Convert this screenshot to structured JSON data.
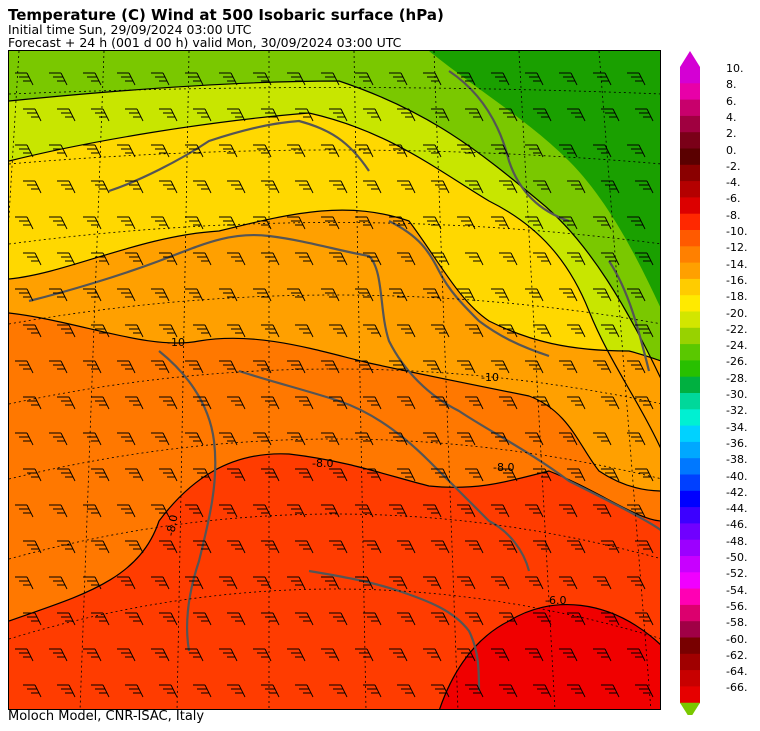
{
  "header": {
    "title": "Temperature (C) Wind  at 500 Isobaric surface (hPa)",
    "initial_time": "Initial time  Sun, 29/09/2024  03:00 UTC",
    "forecast": "Forecast  +  24 h  (001 d 00 h)  valid Mon, 30/09/2024 03:00 UTC"
  },
  "footer": {
    "credit": "Moloch Model, CNR-ISAC, Italy"
  },
  "map": {
    "contour_labels": [
      "-10",
      "-10",
      "-8.0",
      "-8.0",
      "-8.0",
      "-6.0"
    ]
  },
  "legend": {
    "levels": [
      "10.",
      "8.",
      "6.",
      "4.",
      "2.",
      "0.",
      "-2.",
      "-4.",
      "-6.",
      "-8.",
      "-10.",
      "-12.",
      "-14.",
      "-16.",
      "-18.",
      "-20.",
      "-22.",
      "-24.",
      "-26.",
      "-28.",
      "-30.",
      "-32.",
      "-34.",
      "-36.",
      "-38.",
      "-40.",
      "-42.",
      "-44.",
      "-46.",
      "-48.",
      "-50.",
      "-52.",
      "-54.",
      "-56.",
      "-58.",
      "-60.",
      "-62.",
      "-64.",
      "-66."
    ],
    "colors": [
      "#d400d4",
      "#e800a8",
      "#c8006c",
      "#a00040",
      "#7a0018",
      "#5a0000",
      "#8a0000",
      "#b40000",
      "#dc0000",
      "#ff2800",
      "#ff5a00",
      "#ff8000",
      "#ffa000",
      "#ffcc00",
      "#ffea00",
      "#d2e600",
      "#98d200",
      "#5ac800",
      "#28c000",
      "#00b040",
      "#00d89a",
      "#00f0d2",
      "#00d2ff",
      "#00a8ff",
      "#0078ff",
      "#0040ff",
      "#0000ff",
      "#3c00ff",
      "#7000ff",
      "#9c00ff",
      "#c800ff",
      "#f000ff",
      "#ff00b4",
      "#dc006e",
      "#a00046",
      "#780000",
      "#a00000",
      "#c80000",
      "#e60000"
    ]
  },
  "colors": {
    "band_top": "#1aa000",
    "band_green": "#7ac800",
    "band_lime": "#c8e600",
    "band_yellow": "#ffd800",
    "band_lightorange": "#ffa000",
    "band_orange": "#ff7800",
    "band_redorange": "#ff3c00",
    "band_red": "#f00000"
  }
}
